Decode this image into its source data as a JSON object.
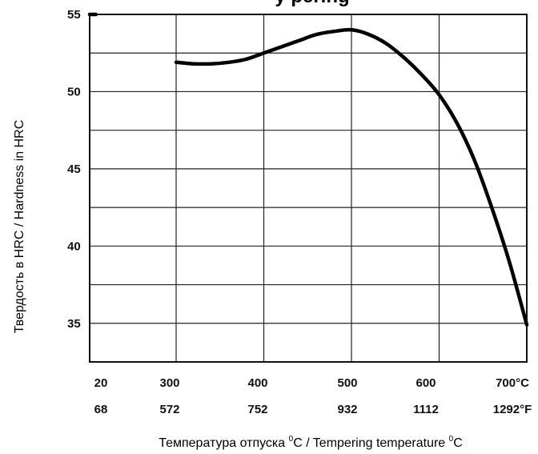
{
  "chart_data": {
    "type": "line",
    "title": "y                                                    pering",
    "ylabel": "Твердость в HRC /  Hardness in HRC",
    "xlabel_parts": [
      "Температура отпуска ",
      "0",
      "C / Tempering temperature ",
      "0",
      "C"
    ],
    "ylim": [
      32.5,
      55
    ],
    "yticks": [
      35,
      40,
      45,
      50,
      55
    ],
    "xticks_c": [
      "20",
      "300",
      "400",
      "500",
      "600",
      "700°C"
    ],
    "xticks_f": [
      "68",
      "572",
      "752",
      "932",
      "1112",
      "1292°F"
    ],
    "grid": true,
    "series": [
      {
        "x": [
          20,
          40
        ],
        "y": [
          55.0,
          55.0
        ]
      },
      {
        "x": [
          300,
          320,
          340,
          360,
          380,
          400,
          420,
          440,
          460,
          480,
          500,
          520,
          540,
          560,
          580,
          600,
          620,
          640,
          660,
          680,
          700
        ],
        "y": [
          51.9,
          51.8,
          51.8,
          51.9,
          52.1,
          52.5,
          52.9,
          53.3,
          53.7,
          53.9,
          54.0,
          53.7,
          53.1,
          52.2,
          51.1,
          49.8,
          48.0,
          45.6,
          42.5,
          39.0,
          34.9
        ]
      }
    ]
  }
}
